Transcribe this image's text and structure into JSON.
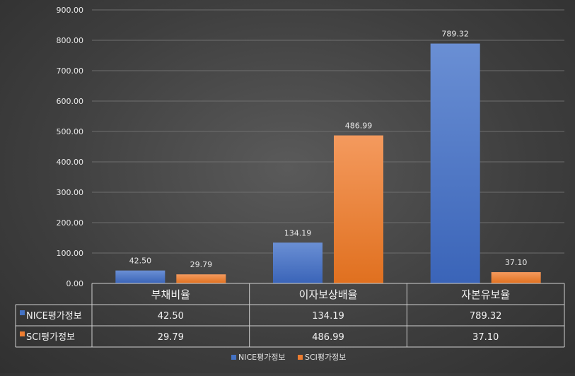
{
  "chart_data": {
    "type": "bar",
    "categories": [
      "부채비율",
      "이자보상배율",
      "자본유보율"
    ],
    "series": [
      {
        "name": "NICE평가정보",
        "values": [
          42.5,
          134.19,
          789.32
        ],
        "color": "#4472C4"
      },
      {
        "name": "SCI평가정보",
        "values": [
          29.79,
          486.99,
          37.1
        ],
        "color": "#ED7D31"
      }
    ],
    "y_ticks": [
      "0.00",
      "100.00",
      "200.00",
      "300.00",
      "400.00",
      "500.00",
      "600.00",
      "700.00",
      "800.00",
      "900.00"
    ],
    "ylim": [
      0,
      900
    ],
    "data_labels": [
      [
        "42.50",
        "134.19",
        "789.32"
      ],
      [
        "29.79",
        "486.99",
        "37.10"
      ]
    ],
    "grid": true,
    "legend_position": "bottom",
    "data_table": true
  }
}
